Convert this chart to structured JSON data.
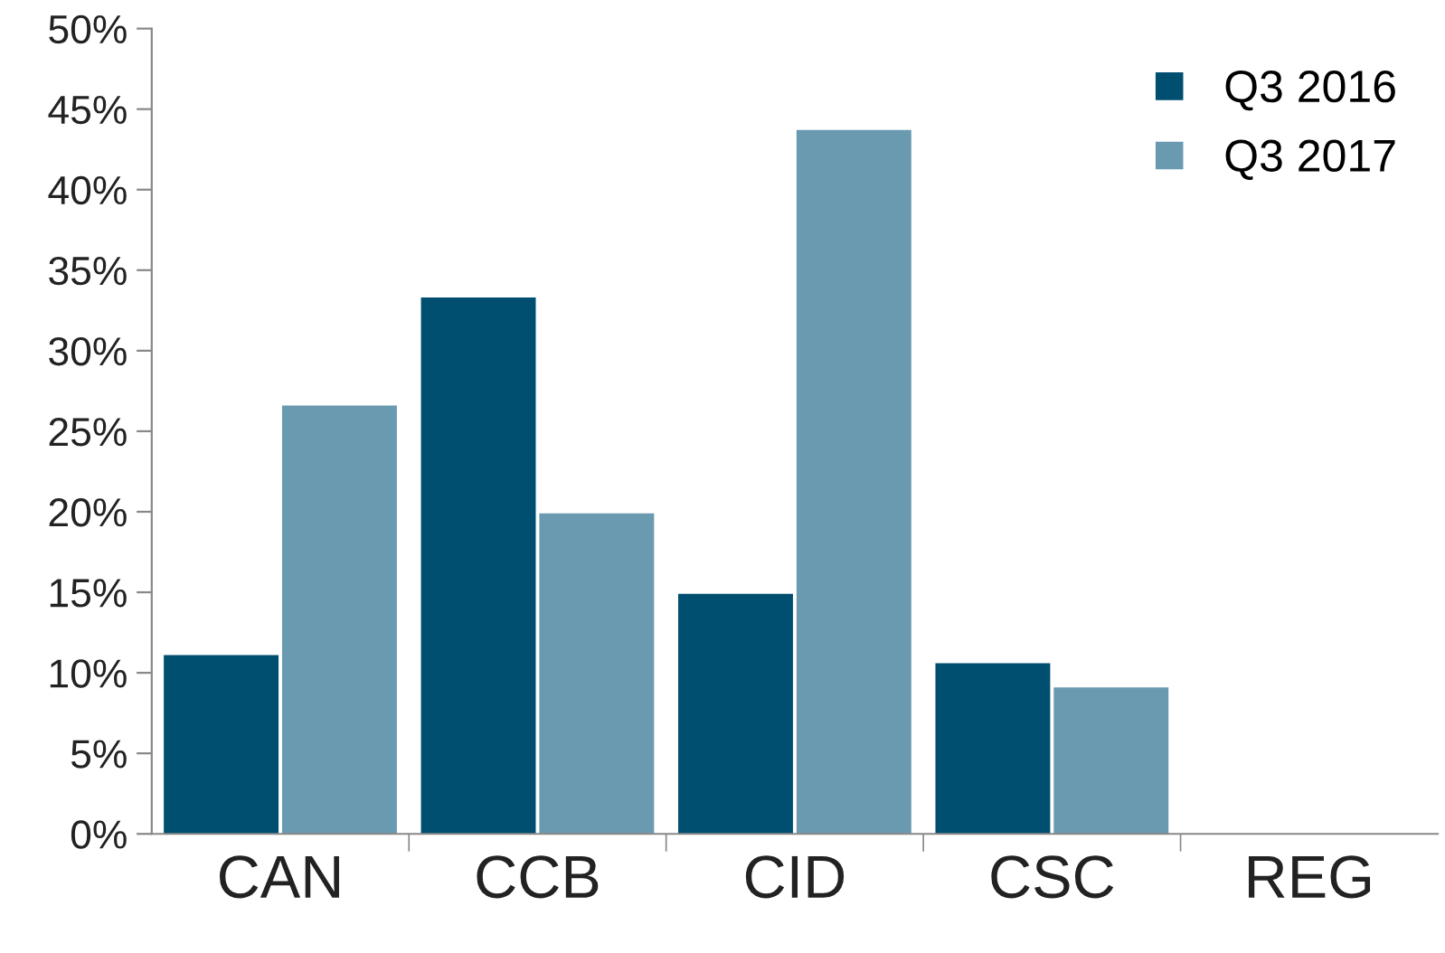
{
  "chart_data": {
    "type": "bar",
    "categories": [
      "CAN",
      "CCB",
      "CID",
      "CSC",
      "REG"
    ],
    "series": [
      {
        "name": "Q3 2016",
        "color": "#004f71",
        "values": [
          11.1,
          33.3,
          14.9,
          10.6,
          0
        ]
      },
      {
        "name": "Q3 2017",
        "color": "#6a9ab0",
        "values": [
          26.6,
          19.9,
          43.7,
          9.1,
          0
        ]
      }
    ],
    "ylim": [
      0,
      50
    ],
    "yticks": [
      {
        "value": 0,
        "label": "0%"
      },
      {
        "value": 5,
        "label": "5%"
      },
      {
        "value": 10,
        "label": "10%"
      },
      {
        "value": 15,
        "label": "15%"
      },
      {
        "value": 20,
        "label": "20%"
      },
      {
        "value": 25,
        "label": "25%"
      },
      {
        "value": 30,
        "label": "30%"
      },
      {
        "value": 35,
        "label": "35%"
      },
      {
        "value": 40,
        "label": "40%"
      },
      {
        "value": 45,
        "label": "45%"
      },
      {
        "value": 50,
        "label": "50%"
      }
    ],
    "grid": false,
    "legend": "top right"
  }
}
